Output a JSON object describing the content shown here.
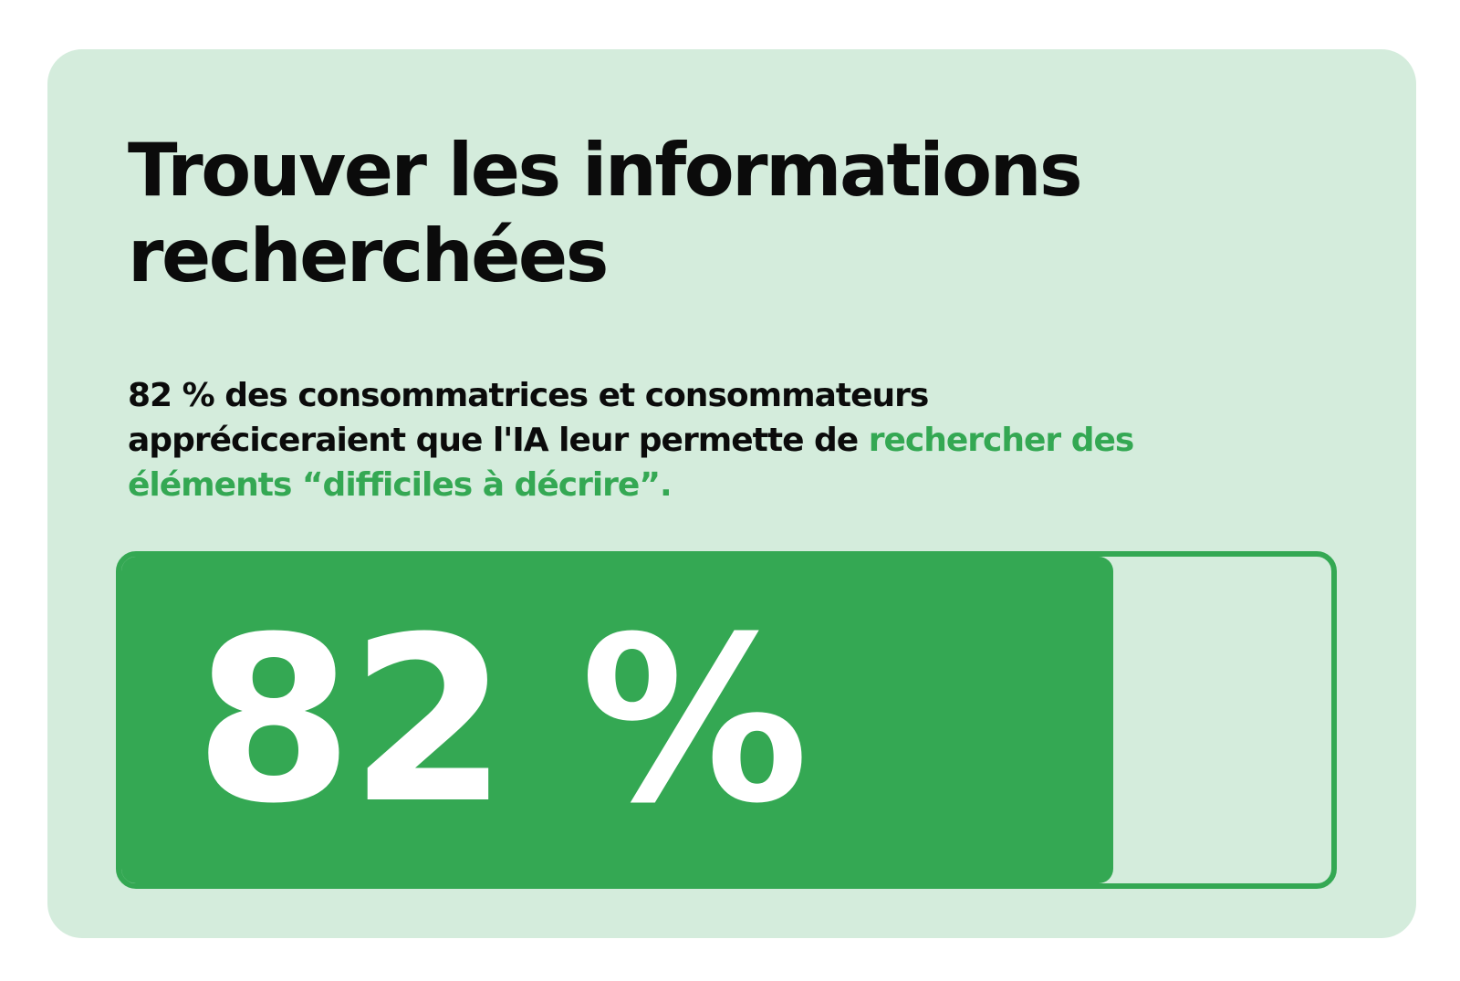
{
  "title": "Trouver les informations recherchées",
  "subtitle": {
    "plain": "82 % des consommatrices et consommateurs appréciceraient que l'IA leur permette de ",
    "highlight": "rechercher des éléments “difficiles à décrire”."
  },
  "colors": {
    "background": "#ffffff",
    "card": "#d4ecdc",
    "accent": "#34a853",
    "text": "#0b0b0b",
    "bar_text": "#ffffff"
  },
  "chart_data": {
    "type": "bar",
    "orientation": "horizontal",
    "value": 82,
    "max": 100,
    "label": "82 %"
  }
}
